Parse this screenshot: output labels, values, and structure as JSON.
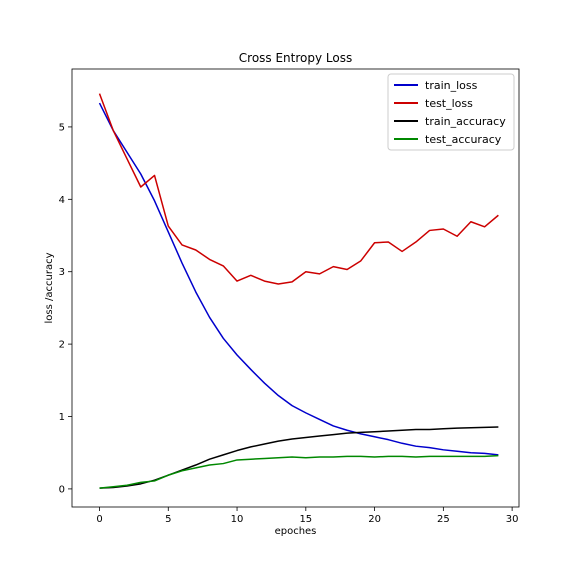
{
  "chart_data": {
    "type": "line",
    "title": "Cross Entropy Loss",
    "xlabel": "epoches",
    "ylabel": "loss /accuracy",
    "xlim": [
      -2,
      30.5
    ],
    "ylim": [
      -0.25,
      5.8
    ],
    "xticks": [
      0,
      5,
      10,
      15,
      20,
      25,
      30
    ],
    "yticks": [
      0,
      1,
      2,
      3,
      4,
      5
    ],
    "grid": false,
    "legend_position": "top-right",
    "x": [
      0,
      1,
      2,
      3,
      4,
      5,
      6,
      7,
      8,
      9,
      10,
      11,
      12,
      13,
      14,
      15,
      16,
      17,
      18,
      19,
      20,
      21,
      22,
      23,
      24,
      25,
      26,
      27,
      28,
      29
    ],
    "series": [
      {
        "name": "train_loss",
        "color": "#0000cc",
        "values": [
          5.33,
          4.95,
          4.65,
          4.35,
          3.98,
          3.55,
          3.12,
          2.72,
          2.37,
          2.08,
          1.85,
          1.65,
          1.46,
          1.29,
          1.15,
          1.05,
          0.96,
          0.87,
          0.81,
          0.76,
          0.72,
          0.68,
          0.63,
          0.59,
          0.57,
          0.54,
          0.52,
          0.5,
          0.49,
          0.47
        ]
      },
      {
        "name": "test_loss",
        "color": "#cc0000",
        "values": [
          5.46,
          4.95,
          4.56,
          4.17,
          4.33,
          3.63,
          3.37,
          3.3,
          3.17,
          3.08,
          2.87,
          2.95,
          2.87,
          2.83,
          2.86,
          3.0,
          2.97,
          3.07,
          3.03,
          3.15,
          3.4,
          3.41,
          3.28,
          3.41,
          3.57,
          3.59,
          3.49,
          3.69,
          3.62,
          3.78
        ]
      },
      {
        "name": "train_accuracy",
        "color": "#000000",
        "values": [
          0.01,
          0.02,
          0.04,
          0.07,
          0.12,
          0.19,
          0.26,
          0.33,
          0.41,
          0.47,
          0.53,
          0.58,
          0.62,
          0.66,
          0.69,
          0.71,
          0.73,
          0.75,
          0.77,
          0.78,
          0.79,
          0.8,
          0.81,
          0.82,
          0.82,
          0.83,
          0.84,
          0.845,
          0.85,
          0.855
        ]
      },
      {
        "name": "test_accuracy",
        "color": "#008800",
        "values": [
          0.01,
          0.03,
          0.05,
          0.09,
          0.11,
          0.19,
          0.25,
          0.29,
          0.33,
          0.35,
          0.4,
          0.41,
          0.42,
          0.43,
          0.44,
          0.43,
          0.44,
          0.44,
          0.45,
          0.45,
          0.44,
          0.45,
          0.45,
          0.44,
          0.45,
          0.45,
          0.45,
          0.45,
          0.45,
          0.46
        ]
      }
    ]
  }
}
